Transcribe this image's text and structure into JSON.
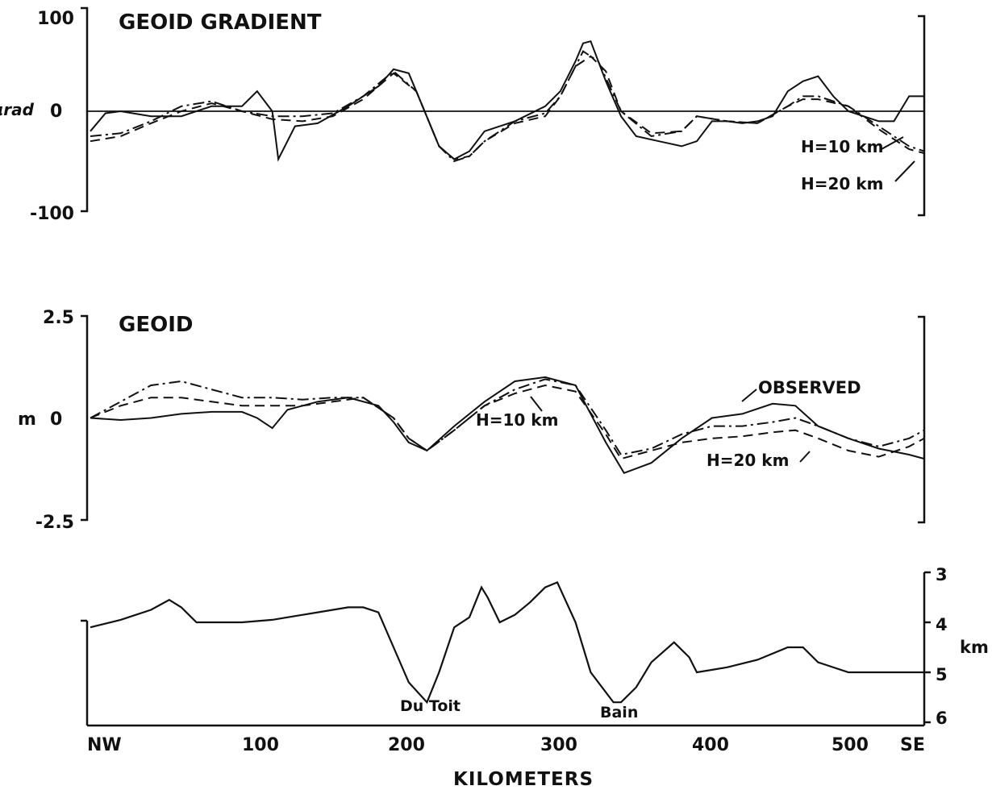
{
  "chart_data": [
    {
      "type": "line",
      "title": "GEOID GRADIENT",
      "ylabel": "µrad",
      "ylim": [
        -100,
        100
      ],
      "yticks": [
        "100",
        "0",
        "-100"
      ],
      "xlim": [
        0,
        550
      ],
      "annotations": [
        "H=10 km",
        "H=20 km"
      ],
      "series": [
        {
          "name": "OBSERVED",
          "style": "solid",
          "x": [
            0,
            10,
            20,
            40,
            60,
            80,
            100,
            110,
            120,
            124,
            135,
            150,
            170,
            190,
            200,
            210,
            215,
            230,
            240,
            250,
            260,
            280,
            300,
            310,
            320,
            325,
            330,
            340,
            350,
            360,
            375,
            390,
            400,
            410,
            420,
            430,
            440,
            450,
            460,
            470,
            480,
            490,
            500,
            510,
            520,
            530,
            540,
            550
          ],
          "y": [
            -20,
            -2,
            0,
            -5,
            -5,
            5,
            5,
            20,
            0,
            -48,
            -15,
            -12,
            5,
            25,
            42,
            38,
            20,
            -35,
            -48,
            -40,
            -20,
            -10,
            5,
            20,
            50,
            68,
            70,
            30,
            -5,
            -25,
            -30,
            -35,
            -30,
            -10,
            -10,
            -12,
            -10,
            -5,
            20,
            30,
            35,
            15,
            0,
            -5,
            -10,
            -10,
            15,
            15
          ]
        },
        {
          "name": "H=10 km",
          "style": "dash-dot",
          "x": [
            0,
            20,
            40,
            60,
            80,
            100,
            120,
            140,
            160,
            180,
            200,
            215,
            230,
            240,
            250,
            260,
            280,
            300,
            310,
            320,
            325,
            335,
            350,
            370,
            390,
            400,
            420,
            440,
            460,
            470,
            480,
            500,
            520,
            540,
            550
          ],
          "y": [
            -25,
            -22,
            -10,
            5,
            10,
            0,
            -5,
            -5,
            -2,
            15,
            40,
            20,
            -35,
            -50,
            -45,
            -30,
            -10,
            -2,
            15,
            45,
            60,
            50,
            0,
            -25,
            -20,
            -5,
            -10,
            -12,
            5,
            15,
            15,
            5,
            -15,
            -35,
            -40
          ]
        },
        {
          "name": "H=20 km",
          "style": "dashed",
          "x": [
            0,
            20,
            40,
            60,
            80,
            100,
            120,
            140,
            160,
            180,
            200,
            215,
            230,
            240,
            250,
            260,
            280,
            300,
            310,
            320,
            330,
            340,
            350,
            370,
            390,
            400,
            420,
            440,
            460,
            470,
            480,
            500,
            520,
            540,
            550
          ],
          "y": [
            -30,
            -25,
            -12,
            0,
            8,
            0,
            -8,
            -10,
            -5,
            12,
            38,
            20,
            -35,
            -48,
            -45,
            -30,
            -12,
            -5,
            15,
            45,
            55,
            40,
            0,
            -22,
            -20,
            -5,
            -10,
            -12,
            5,
            12,
            12,
            5,
            -18,
            -38,
            -42
          ]
        }
      ]
    },
    {
      "type": "line",
      "title": "GEOID",
      "ylabel": "m",
      "ylim": [
        -2.5,
        2.5
      ],
      "yticks": [
        "2.5",
        "0",
        "-2.5"
      ],
      "xlim": [
        0,
        550
      ],
      "annotations": [
        "OBSERVED",
        "H=10 km",
        "H=20 km"
      ],
      "series": [
        {
          "name": "OBSERVED",
          "style": "solid",
          "x": [
            0,
            20,
            40,
            60,
            80,
            100,
            110,
            120,
            130,
            150,
            170,
            190,
            200,
            210,
            222,
            240,
            260,
            280,
            300,
            320,
            340,
            352,
            370,
            390,
            410,
            430,
            450,
            465,
            480,
            500,
            520,
            540,
            550
          ],
          "y": [
            0,
            -0.05,
            0,
            0.1,
            0.15,
            0.15,
            0,
            -0.25,
            0.2,
            0.4,
            0.5,
            0.3,
            -0.1,
            -0.6,
            -0.8,
            -0.2,
            0.4,
            0.9,
            1.0,
            0.8,
            -0.6,
            -1.35,
            -1.1,
            -0.5,
            0,
            0.1,
            0.35,
            0.3,
            -0.2,
            -0.5,
            -0.75,
            -0.9,
            -1.0
          ]
        },
        {
          "name": "H=10 km",
          "style": "dash-dot",
          "x": [
            0,
            20,
            40,
            60,
            80,
            100,
            120,
            140,
            160,
            180,
            200,
            210,
            222,
            240,
            260,
            280,
            300,
            320,
            340,
            350,
            370,
            390,
            410,
            430,
            450,
            465,
            480,
            500,
            520,
            540,
            550
          ],
          "y": [
            0,
            0.4,
            0.8,
            0.9,
            0.7,
            0.5,
            0.5,
            0.45,
            0.5,
            0.5,
            0.0,
            -0.5,
            -0.8,
            -0.3,
            0.3,
            0.7,
            0.95,
            0.8,
            -0.3,
            -0.9,
            -0.75,
            -0.4,
            -0.2,
            -0.2,
            -0.1,
            0.0,
            -0.2,
            -0.5,
            -0.7,
            -0.5,
            -0.3
          ]
        },
        {
          "name": "H=20 km",
          "style": "dashed",
          "x": [
            0,
            20,
            40,
            60,
            80,
            100,
            120,
            140,
            160,
            180,
            200,
            210,
            222,
            240,
            260,
            280,
            300,
            320,
            340,
            350,
            370,
            390,
            410,
            430,
            450,
            465,
            480,
            500,
            520,
            540,
            550
          ],
          "y": [
            0,
            0.3,
            0.5,
            0.5,
            0.4,
            0.3,
            0.3,
            0.3,
            0.4,
            0.5,
            0.0,
            -0.5,
            -0.8,
            -0.3,
            0.3,
            0.6,
            0.8,
            0.65,
            -0.4,
            -1.0,
            -0.8,
            -0.6,
            -0.5,
            -0.45,
            -0.35,
            -0.3,
            -0.5,
            -0.8,
            -0.95,
            -0.7,
            -0.5
          ]
        }
      ]
    },
    {
      "type": "line",
      "title": "",
      "ylabel": "km",
      "ylim": [
        6,
        3
      ],
      "yticks": [
        "3",
        "4",
        "5",
        "6"
      ],
      "xlim": [
        0,
        550
      ],
      "xlabel": "KILOMETERS",
      "xticks": [
        "NW",
        "100",
        "200",
        "300",
        "400",
        "500",
        "SE"
      ],
      "annotations": [
        "Du Toit",
        "Bain"
      ],
      "series": [
        {
          "name": "",
          "style": "solid",
          "x": [
            0,
            20,
            40,
            52,
            60,
            70,
            80,
            100,
            120,
            140,
            160,
            170,
            180,
            190,
            200,
            210,
            222,
            230,
            240,
            250,
            258,
            262,
            270,
            280,
            290,
            300,
            308,
            320,
            330,
            345,
            350,
            360,
            370,
            385,
            395,
            400,
            420,
            440,
            460,
            470,
            480,
            500,
            520,
            550
          ],
          "y": [
            4.1,
            3.95,
            3.75,
            3.55,
            3.7,
            4.0,
            4.0,
            4.0,
            3.95,
            3.85,
            3.75,
            3.7,
            3.7,
            3.8,
            4.5,
            5.2,
            5.6,
            5.0,
            4.1,
            3.9,
            3.3,
            3.5,
            4.0,
            3.85,
            3.6,
            3.3,
            3.2,
            4.0,
            5.0,
            5.6,
            5.6,
            5.3,
            4.8,
            4.4,
            4.7,
            5.0,
            4.9,
            4.75,
            4.5,
            4.5,
            4.8,
            5.0,
            5.0,
            5.0
          ]
        }
      ]
    }
  ]
}
